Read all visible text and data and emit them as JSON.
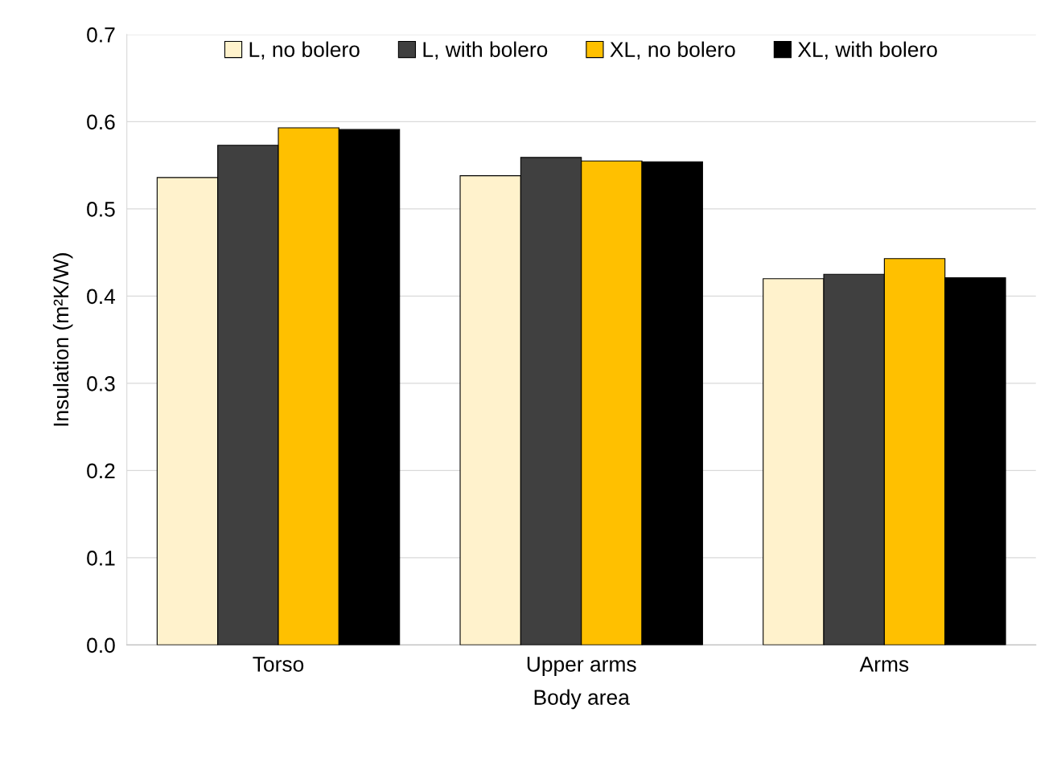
{
  "chart_data": {
    "type": "bar",
    "xlabel": "Body area",
    "ylabel": "Insulation (m²K/W)",
    "categories": [
      "Torso",
      "Upper arms",
      "Arms"
    ],
    "series": [
      {
        "name": "L, no bolero",
        "color": "#fff2cc",
        "values": [
          0.536,
          0.538,
          0.42
        ]
      },
      {
        "name": "L, with bolero",
        "color": "#404040",
        "values": [
          0.573,
          0.559,
          0.425
        ]
      },
      {
        "name": "XL, no bolero",
        "color": "#ffc000",
        "values": [
          0.593,
          0.555,
          0.443
        ]
      },
      {
        "name": "XL, with bolero",
        "color": "#000000",
        "values": [
          0.591,
          0.554,
          0.421
        ]
      }
    ],
    "ylim": [
      0.0,
      0.7
    ],
    "yticks": [
      {
        "value": 0,
        "label": "0.0"
      },
      0.1,
      0.2,
      0.3,
      0.4,
      0.5,
      0.6,
      0.7
    ],
    "grid": "y",
    "legend": "top"
  }
}
